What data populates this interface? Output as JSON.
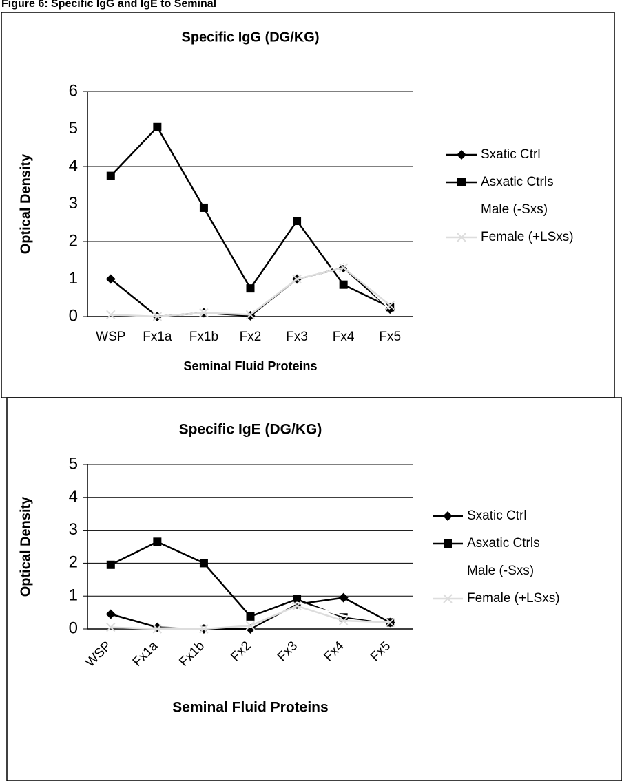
{
  "page_title": "Figure 6: Specific IgG and IgE to Seminal",
  "chart_data": [
    {
      "type": "line",
      "title": "Specific IgG (DG/KG)",
      "x_label": "Seminal Fluid Proteins",
      "y_label": "Optical Density",
      "categories": [
        "WSP",
        "Fx1a",
        "Fx1b",
        "Fx2",
        "Fx3",
        "Fx4",
        "Fx5"
      ],
      "ylim": [
        0,
        6
      ],
      "yticks": [
        0,
        1,
        2,
        3,
        4,
        5,
        6
      ],
      "grid": true,
      "legend": "right",
      "xtick_rotation": 0,
      "series": [
        {
          "name": "Sxatic Ctrl",
          "color": "#000000",
          "marker": "diamond",
          "values": [
            1.0,
            0.0,
            0.1,
            0.02,
            1.0,
            1.3,
            0.2
          ]
        },
        {
          "name": "Asxatic Ctrls",
          "color": "#000000",
          "marker": "square",
          "values": [
            3.75,
            5.05,
            2.9,
            0.75,
            2.55,
            0.85,
            0.25
          ]
        },
        {
          "name": "Male (-Sxs)",
          "color": "#ffffff",
          "marker": "none",
          "values": [
            0.1,
            0.05,
            0.15,
            0.05,
            1.0,
            1.4,
            0.2
          ]
        },
        {
          "name": "Female (+LSxs)",
          "color": "#dddddd",
          "marker": "x",
          "values": [
            0.05,
            0.0,
            0.1,
            0.05,
            1.0,
            1.3,
            0.3
          ]
        }
      ]
    },
    {
      "type": "line",
      "title": "Specific IgE (DG/KG)",
      "x_label": "Seminal Fluid Proteins",
      "y_label": "Optical Density",
      "categories": [
        "WSP",
        "Fx1a",
        "Fx1b",
        "Fx2",
        "Fx3",
        "Fx4",
        "Fx5"
      ],
      "ylim": [
        0,
        5
      ],
      "yticks": [
        0,
        1,
        2,
        3,
        4,
        5
      ],
      "grid": true,
      "legend": "right",
      "xtick_rotation": -45,
      "series": [
        {
          "name": "Sxatic Ctrl",
          "color": "#000000",
          "marker": "diamond",
          "values": [
            0.45,
            0.05,
            0.0,
            0.0,
            0.75,
            0.95,
            0.2
          ]
        },
        {
          "name": "Asxatic Ctrls",
          "color": "#000000",
          "marker": "square",
          "values": [
            1.95,
            2.65,
            2.0,
            0.38,
            0.9,
            0.35,
            0.2
          ]
        },
        {
          "name": "Male (-Sxs)",
          "color": "#ffffff",
          "marker": "none",
          "values": [
            0.05,
            0.02,
            0.05,
            0.05,
            0.8,
            0.4,
            0.2
          ]
        },
        {
          "name": "Female (+LSxs)",
          "color": "#dddddd",
          "marker": "x",
          "values": [
            0.05,
            0.0,
            0.0,
            0.1,
            0.7,
            0.25,
            0.2
          ]
        }
      ]
    }
  ]
}
